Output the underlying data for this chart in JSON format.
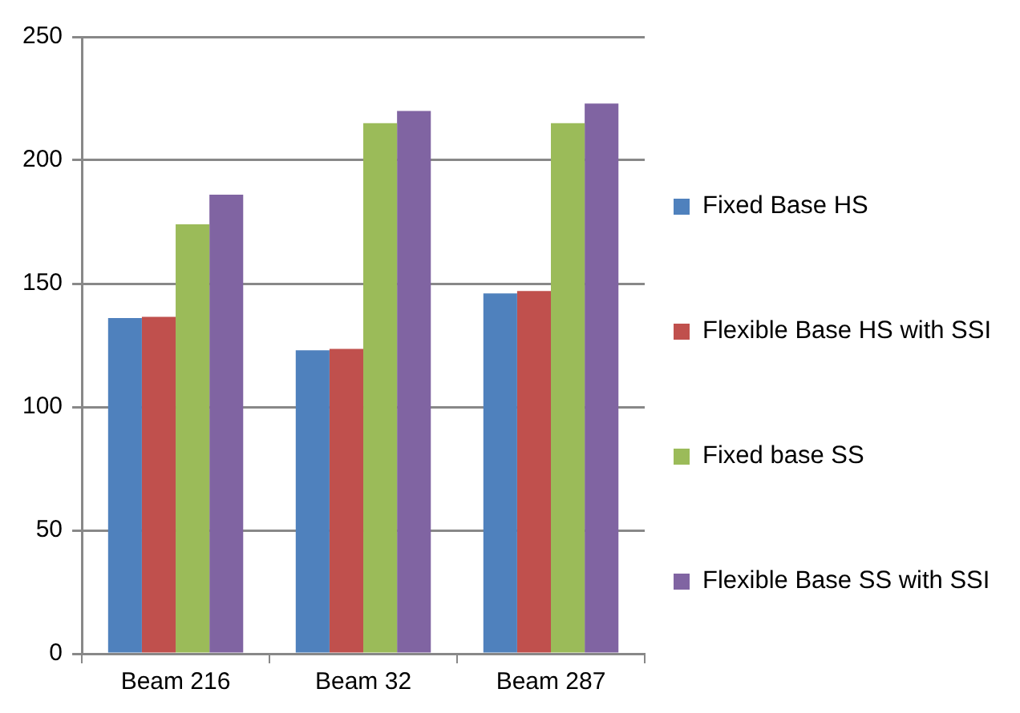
{
  "chart_data": {
    "type": "bar",
    "categories": [
      "Beam 216",
      "Beam 32",
      "Beam 287"
    ],
    "series": [
      {
        "name": "Fixed Base HS",
        "color": "#4f81bd",
        "values": [
          136,
          123,
          146
        ]
      },
      {
        "name": "Flexible Base HS with SSI",
        "color": "#c0504d",
        "values": [
          136.5,
          123.5,
          147
        ]
      },
      {
        "name": "Fixed base SS",
        "color": "#9bbb59",
        "values": [
          174,
          215,
          215
        ]
      },
      {
        "name": "Flexible Base SS with SSI",
        "color": "#8064a2",
        "values": [
          186,
          220,
          223
        ]
      }
    ],
    "ylim": [
      0,
      250
    ],
    "yticks": [
      0,
      50,
      100,
      150,
      200,
      250
    ],
    "grid": "y",
    "legend": "right"
  }
}
